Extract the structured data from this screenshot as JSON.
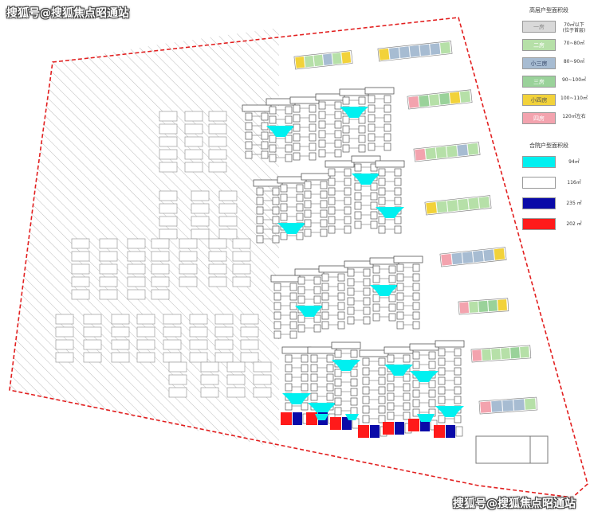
{
  "watermarks": {
    "top_left": "搜狐号@搜狐焦点昭通站",
    "bottom_right": "搜狐号@搜狐焦点昭通站"
  },
  "legend_high": {
    "title": "高层户型面积段",
    "rows": [
      {
        "label": "一房",
        "value": "70㎡以下\n(位于首层)",
        "color": "#d9d9d9",
        "text_color": "#888888"
      },
      {
        "label": "二房",
        "value": "70~80㎡",
        "color": "#b6e0a8",
        "text_color": "#ffffff"
      },
      {
        "label": "小三房",
        "value": "80~90㎡",
        "color": "#a7bcd2",
        "text_color": "#334466"
      },
      {
        "label": "三房",
        "value": "90~100㎡",
        "color": "#9ad29a",
        "text_color": "#ffffff"
      },
      {
        "label": "小四房",
        "value": "100~110㎡",
        "color": "#f2d23a",
        "text_color": "#555555"
      },
      {
        "label": "四房",
        "value": "120㎡左右",
        "color": "#f3a3ae",
        "text_color": "#ffffff"
      }
    ]
  },
  "legend_court": {
    "title": "合院户型面积段",
    "rows": [
      {
        "value": "94㎡",
        "color": "#00f0f0"
      },
      {
        "value": "116㎡",
        "color": "#ffffff"
      },
      {
        "value": "235 ㎡",
        "color": "#0a0aa8"
      },
      {
        "value": "202 ㎡",
        "color": "#ff1a1a"
      }
    ]
  }
}
